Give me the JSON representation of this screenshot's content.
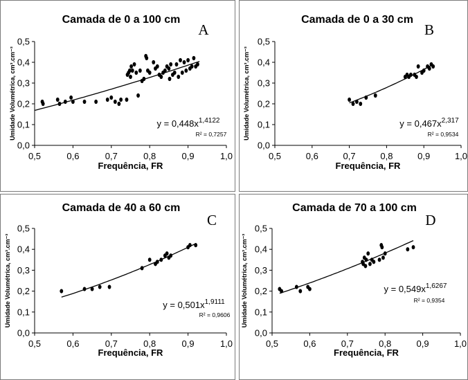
{
  "chart_data": [
    {
      "panel": "A",
      "type": "scatter",
      "title": "Camada de 0 a 100 cm",
      "xlabel": "Frequência, FR",
      "ylabel": "Umidade Volumétrica, cm³.cm⁻³",
      "xlim": [
        0.5,
        1.0
      ],
      "ylim": [
        0.0,
        0.5
      ],
      "x_ticks": [
        "0,5",
        "0,6",
        "0,7",
        "0,8",
        "0,9",
        "1,0"
      ],
      "y_ticks": [
        "0,0",
        "0,1",
        "0,2",
        "0,3",
        "0,4",
        "0,5"
      ],
      "equation": {
        "base": "y = 0,448x",
        "exponent": "1,4122"
      },
      "r2": "R² = 0,7257",
      "fit": {
        "a": 0.448,
        "b": 1.4122
      },
      "points": [
        [
          0.52,
          0.21
        ],
        [
          0.522,
          0.2
        ],
        [
          0.56,
          0.22
        ],
        [
          0.565,
          0.2
        ],
        [
          0.58,
          0.21
        ],
        [
          0.595,
          0.23
        ],
        [
          0.6,
          0.21
        ],
        [
          0.63,
          0.21
        ],
        [
          0.66,
          0.21
        ],
        [
          0.69,
          0.22
        ],
        [
          0.7,
          0.23
        ],
        [
          0.71,
          0.21
        ],
        [
          0.72,
          0.2
        ],
        [
          0.725,
          0.22
        ],
        [
          0.74,
          0.22
        ],
        [
          0.742,
          0.34
        ],
        [
          0.745,
          0.35
        ],
        [
          0.748,
          0.36
        ],
        [
          0.75,
          0.33
        ],
        [
          0.752,
          0.38
        ],
        [
          0.755,
          0.36
        ],
        [
          0.76,
          0.39
        ],
        [
          0.765,
          0.35
        ],
        [
          0.77,
          0.24
        ],
        [
          0.775,
          0.36
        ],
        [
          0.78,
          0.31
        ],
        [
          0.785,
          0.32
        ],
        [
          0.79,
          0.43
        ],
        [
          0.792,
          0.42
        ],
        [
          0.795,
          0.36
        ],
        [
          0.8,
          0.35
        ],
        [
          0.81,
          0.4
        ],
        [
          0.815,
          0.37
        ],
        [
          0.82,
          0.38
        ],
        [
          0.825,
          0.34
        ],
        [
          0.83,
          0.33
        ],
        [
          0.835,
          0.35
        ],
        [
          0.84,
          0.36
        ],
        [
          0.845,
          0.38
        ],
        [
          0.85,
          0.37
        ],
        [
          0.852,
          0.32
        ],
        [
          0.855,
          0.39
        ],
        [
          0.86,
          0.34
        ],
        [
          0.865,
          0.35
        ],
        [
          0.87,
          0.39
        ],
        [
          0.875,
          0.33
        ],
        [
          0.88,
          0.41
        ],
        [
          0.885,
          0.35
        ],
        [
          0.89,
          0.4
        ],
        [
          0.895,
          0.36
        ],
        [
          0.9,
          0.41
        ],
        [
          0.905,
          0.37
        ],
        [
          0.91,
          0.38
        ],
        [
          0.915,
          0.42
        ],
        [
          0.92,
          0.38
        ],
        [
          0.925,
          0.39
        ]
      ]
    },
    {
      "panel": "B",
      "type": "scatter",
      "title": "Camada de 0 a 30 cm",
      "xlabel": "Frequência, FR",
      "ylabel": "Umidade Volumétrica, cm³.cm⁻³",
      "xlim": [
        0.5,
        1.0
      ],
      "ylim": [
        0.0,
        0.5
      ],
      "x_ticks": [
        "0,5",
        "0,6",
        "0,7",
        "0,8",
        "0,9",
        "1,0"
      ],
      "y_ticks": [
        "0,0",
        "0,1",
        "0,2",
        "0,3",
        "0,4",
        "0,5"
      ],
      "equation": {
        "base": "y = 0,467x",
        "exponent": "2,317"
      },
      "r2": "R² = 0,9534",
      "fit": {
        "a": 0.467,
        "b": 2.317
      },
      "points": [
        [
          0.7,
          0.22
        ],
        [
          0.71,
          0.2
        ],
        [
          0.72,
          0.21
        ],
        [
          0.73,
          0.2
        ],
        [
          0.745,
          0.23
        ],
        [
          0.77,
          0.24
        ],
        [
          0.85,
          0.33
        ],
        [
          0.855,
          0.34
        ],
        [
          0.86,
          0.33
        ],
        [
          0.865,
          0.34
        ],
        [
          0.875,
          0.34
        ],
        [
          0.88,
          0.33
        ],
        [
          0.885,
          0.38
        ],
        [
          0.895,
          0.35
        ],
        [
          0.9,
          0.36
        ],
        [
          0.91,
          0.38
        ],
        [
          0.915,
          0.37
        ],
        [
          0.92,
          0.39
        ],
        [
          0.925,
          0.38
        ]
      ]
    },
    {
      "panel": "C",
      "type": "scatter",
      "title": "Camada de 40 a 60 cm",
      "xlabel": "Frequência, FR",
      "ylabel": "Umidade Volumétrica, cm³.cm⁻³",
      "xlim": [
        0.5,
        1.0
      ],
      "ylim": [
        0.0,
        0.5
      ],
      "x_ticks": [
        "0,5",
        "0,6",
        "0,7",
        "0,8",
        "0,9",
        "1,0"
      ],
      "y_ticks": [
        "0,0",
        "0,1",
        "0,2",
        "0,3",
        "0,4",
        "0,5"
      ],
      "equation": {
        "base": "y = 0,501x",
        "exponent": "1,9111"
      },
      "r2": "R² = 0,9606",
      "fit": {
        "a": 0.501,
        "b": 1.9111
      },
      "points": [
        [
          0.57,
          0.2
        ],
        [
          0.63,
          0.21
        ],
        [
          0.65,
          0.21
        ],
        [
          0.67,
          0.22
        ],
        [
          0.695,
          0.22
        ],
        [
          0.78,
          0.31
        ],
        [
          0.8,
          0.35
        ],
        [
          0.815,
          0.33
        ],
        [
          0.82,
          0.34
        ],
        [
          0.83,
          0.35
        ],
        [
          0.84,
          0.37
        ],
        [
          0.845,
          0.38
        ],
        [
          0.85,
          0.36
        ],
        [
          0.855,
          0.37
        ],
        [
          0.9,
          0.41
        ],
        [
          0.905,
          0.42
        ],
        [
          0.92,
          0.42
        ]
      ]
    },
    {
      "panel": "D",
      "type": "scatter",
      "title": "Camada de 70 a 100 cm",
      "xlabel": "Frequência, FR",
      "ylabel": "Umidade Volumétrica, cm³.cm⁻³",
      "xlim": [
        0.5,
        1.0
      ],
      "ylim": [
        0.0,
        0.5
      ],
      "x_ticks": [
        "0,5",
        "0,6",
        "0,7",
        "0,8",
        "0,9",
        "1,0"
      ],
      "y_ticks": [
        "0,0",
        "0,1",
        "0,2",
        "0,3",
        "0,4",
        "0,5"
      ],
      "equation": {
        "base": "y = 0,549x",
        "exponent": "1,6267"
      },
      "r2": "R² = 0,9354",
      "fit": {
        "a": 0.549,
        "b": 1.6267
      },
      "points": [
        [
          0.52,
          0.21
        ],
        [
          0.525,
          0.2
        ],
        [
          0.565,
          0.22
        ],
        [
          0.575,
          0.2
        ],
        [
          0.595,
          0.22
        ],
        [
          0.6,
          0.21
        ],
        [
          0.74,
          0.34
        ],
        [
          0.742,
          0.33
        ],
        [
          0.745,
          0.36
        ],
        [
          0.748,
          0.32
        ],
        [
          0.75,
          0.35
        ],
        [
          0.755,
          0.38
        ],
        [
          0.76,
          0.33
        ],
        [
          0.765,
          0.35
        ],
        [
          0.77,
          0.34
        ],
        [
          0.785,
          0.35
        ],
        [
          0.79,
          0.42
        ],
        [
          0.792,
          0.41
        ],
        [
          0.795,
          0.36
        ],
        [
          0.8,
          0.38
        ],
        [
          0.86,
          0.4
        ],
        [
          0.875,
          0.41
        ]
      ]
    }
  ]
}
